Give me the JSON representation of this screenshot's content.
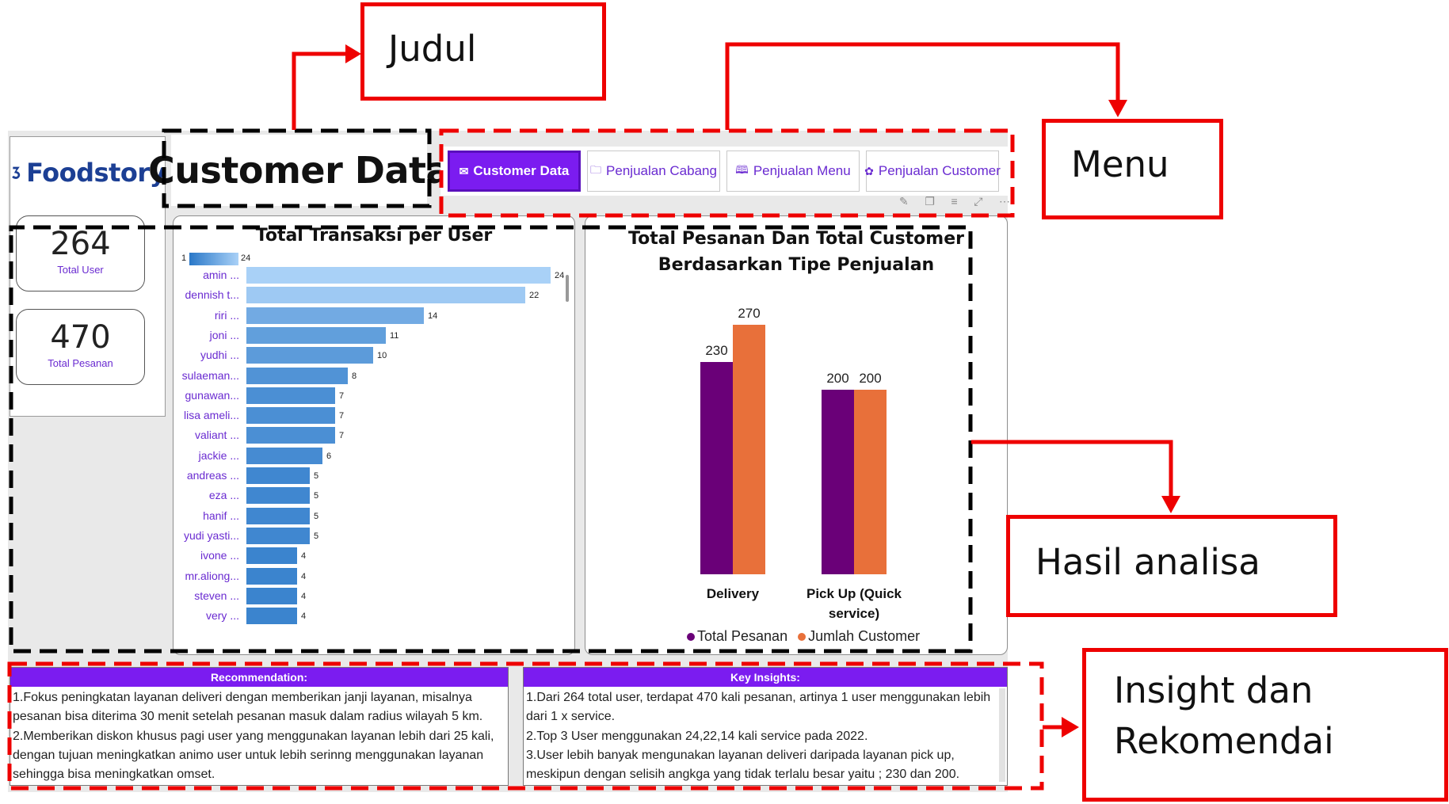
{
  "app": {
    "logo_text": "Foodstory",
    "title": "Customer Data"
  },
  "menu": {
    "tabs": [
      {
        "label": "Customer Data",
        "icon": "envelope-icon",
        "active": true
      },
      {
        "label": "Penjualan Cabang",
        "icon": "folder-icon",
        "active": false
      },
      {
        "label": "Penjualan Menu",
        "icon": "book-icon",
        "active": false
      },
      {
        "label": "Penjualan Customer",
        "icon": "gift-icon",
        "active": false
      }
    ],
    "toolbar_icons": [
      "pin-icon",
      "copy-icon",
      "filter-icon",
      "focus-mode-icon",
      "more-options-icon"
    ]
  },
  "kpis": [
    {
      "value": "264",
      "label": "Total User"
    },
    {
      "value": "470",
      "label": "Total Pesanan"
    }
  ],
  "chart_data": [
    {
      "type": "bar",
      "orientation": "horizontal",
      "title": "Total Transaksi per User",
      "color_scale": {
        "min": "1",
        "max": "24",
        "min_color": "#2a78c8",
        "max_color": "#a9d1f7"
      },
      "categories": [
        "amin ...",
        "dennish t...",
        "riri ...",
        "joni ...",
        "yudhi ...",
        "sulaeman...",
        "gunawan...",
        "lisa ameli...",
        "valiant ...",
        "jackie ...",
        "andreas ...",
        "eza ...",
        "hanif ...",
        "yudi yasti...",
        "ivone ...",
        "mr.aliong...",
        "steven ...",
        "very ..."
      ],
      "values": [
        24,
        22,
        14,
        11,
        10,
        8,
        7,
        7,
        7,
        6,
        5,
        5,
        5,
        5,
        4,
        4,
        4,
        4
      ],
      "xlim": [
        0,
        24
      ]
    },
    {
      "type": "bar",
      "title": "Total Pesanan Dan Total Customer Berdasarkan Tipe Penjualan",
      "categories": [
        "Delivery",
        "Pick Up (Quick service)"
      ],
      "series": [
        {
          "name": "Total Pesanan",
          "values": [
            230,
            200
          ],
          "color": "#6a0078"
        },
        {
          "name": "Jumlah Customer",
          "values": [
            270,
            200
          ],
          "color": "#e8703a"
        }
      ],
      "ylim": [
        0,
        290
      ],
      "legend": "bottom"
    }
  ],
  "recommendation": {
    "header": "Recommendation:",
    "lines": [
      "1.Fokus peningkatan layanan deliveri dengan memberikan janji layanan, misalnya",
      "pesanan bisa diterima 30 menit setelah pesanan masuk dalam radius wilayah 5 km.",
      "2.Memberikan diskon khusus pagi user yang menggunakan layanan lebih dari 25 kali,",
      "dengan tujuan meningkatkan animo user untuk lebih serinng menggunakan layanan",
      "sehingga bisa meningkatkan omset."
    ]
  },
  "key_insights": {
    "header": "Key Insights:",
    "lines": [
      "1.Dari 264 total user, terdapat 470 kali pesanan, artinya 1 user menggunakan lebih",
      "dari 1 x service.",
      "2.Top 3 User menggunakan 24,22,14 kali service pada 2022.",
      "3.User lebih banyak mengunakan layanan deliveri daripada layanan pick up,",
      "meskipun dengan selisih angkga yang tidak terlalu besar yaitu ; 230 dan 200."
    ]
  },
  "annotations": {
    "judul": "Judul",
    "menu": "Menu",
    "hasil_analisa": "Hasil analisa",
    "insight_line1": "Insight dan",
    "insight_line2": "Rekomendai"
  },
  "colors": {
    "accent": "#7b1cf0",
    "annotation_red": "#ee0000"
  }
}
